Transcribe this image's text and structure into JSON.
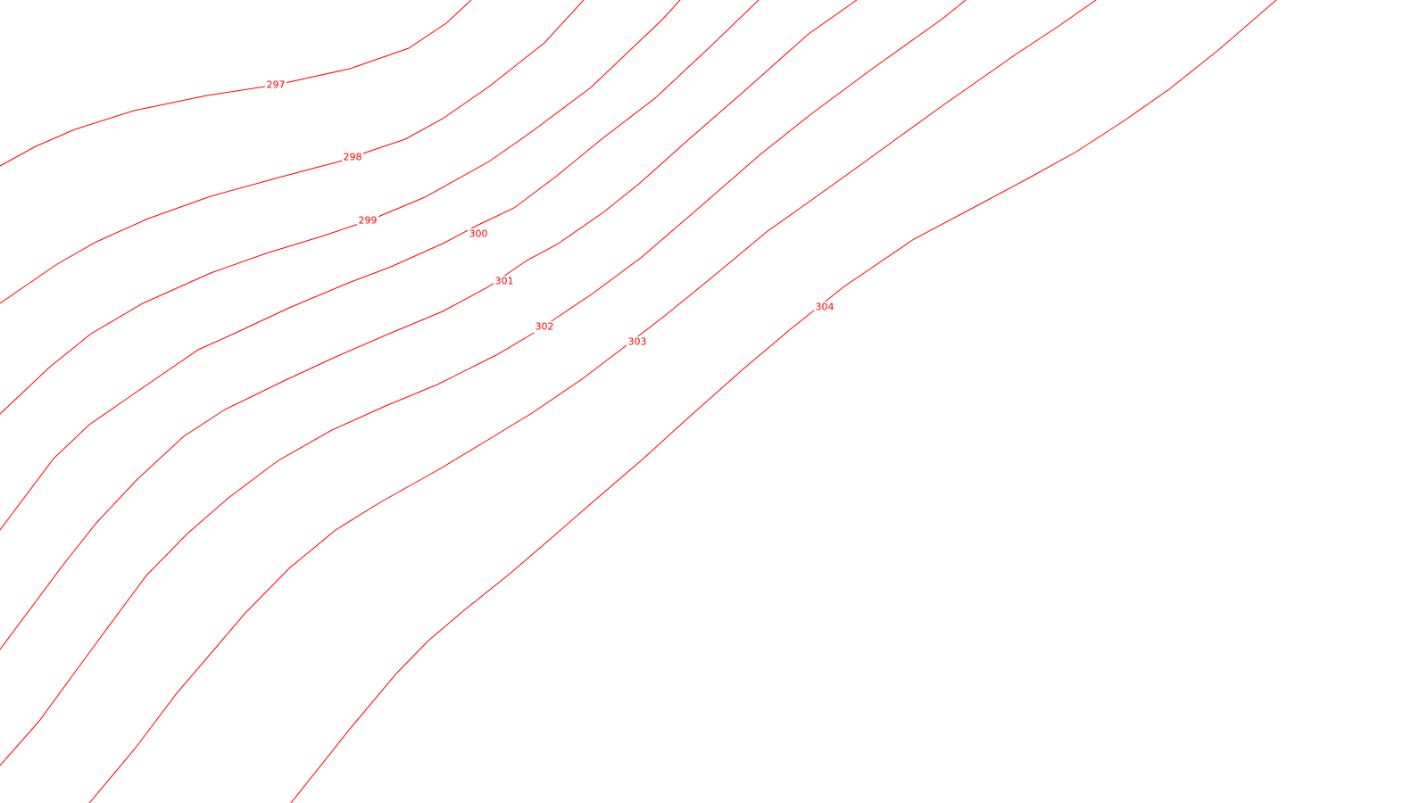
{
  "map": {
    "background_color": "#ffffff",
    "contour_color": "#ff0000",
    "contours": [
      {
        "label": "297"
      },
      {
        "label": "298"
      },
      {
        "label": "299"
      },
      {
        "label": "300"
      },
      {
        "label": "301"
      },
      {
        "label": "302"
      },
      {
        "label": "303"
      },
      {
        "label": "304"
      }
    ]
  }
}
